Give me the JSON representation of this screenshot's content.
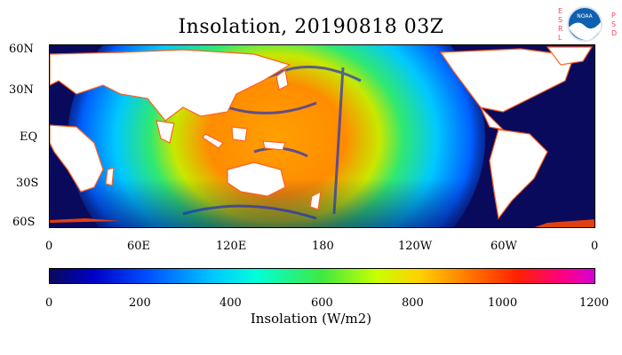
{
  "title": "Insolation, 20190818 03Z",
  "logo": {
    "esrl": [
      "E",
      "S",
      "R",
      "L"
    ],
    "psd": [
      "P",
      "S",
      "D"
    ],
    "noaa": "NOAA"
  },
  "lat_labels": [
    "60N",
    "30N",
    "EQ",
    "30S",
    "60S"
  ],
  "lon_labels": [
    "0",
    "60E",
    "120E",
    "180",
    "120W",
    "60W",
    "0"
  ],
  "colorbar": {
    "ticks": [
      "0",
      "200",
      "400",
      "600",
      "800",
      "1000",
      "1200"
    ],
    "label": "Insolation (W/m2)"
  },
  "colors": {
    "land": "#ffffff",
    "night": "#0a0a5c",
    "coast_glow": "#ff6020"
  }
}
